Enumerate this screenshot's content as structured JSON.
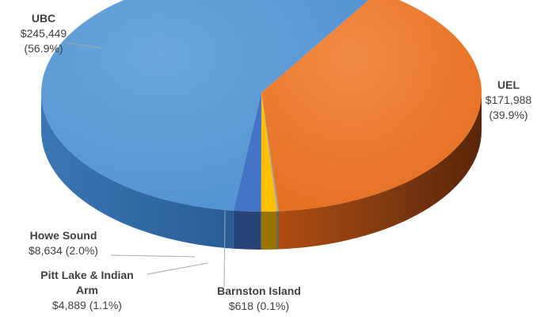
{
  "chart_data": {
    "type": "pie",
    "title": "",
    "style": "3d",
    "slices": [
      {
        "name": "UBC",
        "value": 245449,
        "value_label": "$245,449",
        "pct_label": "(56.9%)",
        "color": "#5b9bd5"
      },
      {
        "name": "UEL",
        "value": 171988,
        "value_label": "$171,988",
        "pct_label": "(39.9%)",
        "color": "#ed7d31"
      },
      {
        "name": "Barnston Island",
        "value": 618,
        "value_label": "$618 (0.1%)",
        "pct_label": "",
        "color": "#a5a5a5"
      },
      {
        "name": "Pitt Lake & Indian Arm",
        "name_line1": "Pitt Lake & Indian",
        "name_line2": "Arm",
        "value": 4889,
        "value_label": "$4,889 (1.1%)",
        "pct_label": "",
        "color": "#ffc000"
      },
      {
        "name": "Howe Sound",
        "value": 8634,
        "value_label": "$8,634 (2.0%)",
        "pct_label": "",
        "color": "#4472c4"
      }
    ]
  }
}
